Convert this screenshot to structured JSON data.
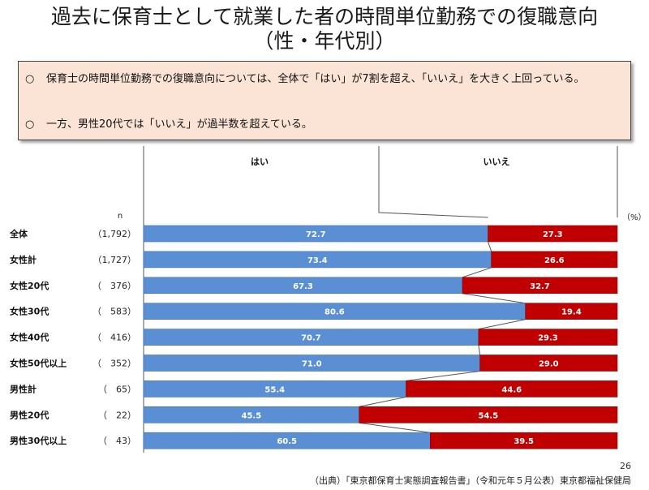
{
  "title": {
    "line1": "過去に保育士として就業した者の時間単位勤務での復職意向",
    "line2": "（性・年代別）"
  },
  "summary": {
    "points": [
      {
        "mark": "○",
        "text": "保育士の時間単位勤務での復職意向については、全体で「はい」が7割を超え、「いいえ」を大きく上回っている。"
      },
      {
        "mark": "○",
        "text": "一方、男性20代では「いいえ」が過半数を超えている。"
      }
    ]
  },
  "colors": {
    "yes": "#5b8fd4",
    "no": "#c00000",
    "summary_bg": "#fbe4d5"
  },
  "chart_data": {
    "type": "bar",
    "stacked": true,
    "orientation": "horizontal",
    "unit_label": "（%）",
    "n_label": "n",
    "xlim": [
      0,
      100
    ],
    "series": [
      {
        "name": "はい",
        "values": [
          72.7,
          73.4,
          67.3,
          80.6,
          70.7,
          71.0,
          55.4,
          45.5,
          60.5
        ]
      },
      {
        "name": "いいえ",
        "values": [
          27.3,
          26.6,
          32.7,
          19.4,
          29.3,
          29.0,
          44.6,
          54.5,
          39.5
        ]
      }
    ],
    "categories": [
      "全体",
      "女性計",
      "女性20代",
      "女性30代",
      "女性40代",
      "女性50代以上",
      "男性計",
      "男性20代",
      "男性30代以上"
    ],
    "n": [
      "（1,792）",
      "（1,727）",
      "（　376）",
      "（　583）",
      "（　416）",
      "（　352）",
      "（　65）",
      "（　22）",
      "（　43）"
    ],
    "labels_yes": [
      "72.7",
      "73.4",
      "67.3",
      "80.6",
      "70.7",
      "71.0",
      "55.4",
      "45.5",
      "60.5"
    ],
    "labels_no": [
      "27.3",
      "26.6",
      "32.7",
      "19.4",
      "29.3",
      "29.0",
      "44.6",
      "54.5",
      "39.5"
    ]
  },
  "footer": {
    "page": "26",
    "source": "（出典）「東京都保育士実態調査報告書」（令和元年５月公表）東京都福祉保健局"
  }
}
